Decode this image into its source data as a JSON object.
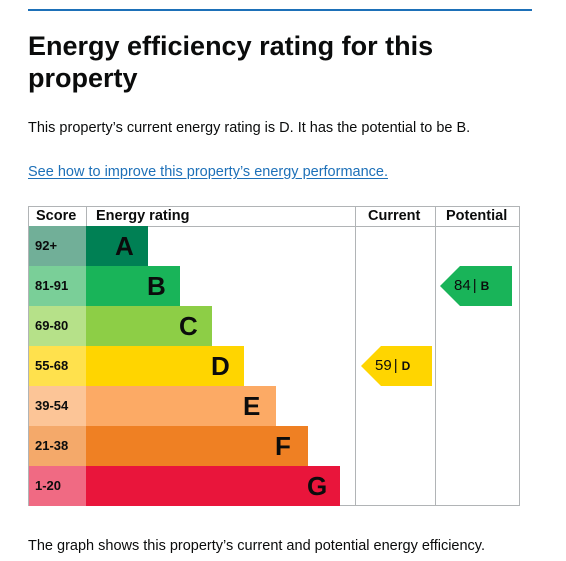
{
  "page": {
    "heading": "Energy efficiency rating for this property",
    "summary": "This property’s current energy rating is D. It has the potential to be B.",
    "improve_link": "See how to improve this property’s energy performance.",
    "caption": "The graph shows this property’s current and potential energy efficiency."
  },
  "chart": {
    "headers": {
      "score": "Score",
      "energy_rating": "Energy rating",
      "current": "Current",
      "potential": "Potential"
    },
    "bands": [
      {
        "range": "92+",
        "letter": "A",
        "color": "#008054",
        "score_bg": "#71af98"
      },
      {
        "range": "81-91",
        "letter": "B",
        "color": "#19b459",
        "score_bg": "#7acf98"
      },
      {
        "range": "69-80",
        "letter": "C",
        "color": "#8dce46",
        "score_bg": "#b6e189"
      },
      {
        "range": "55-68",
        "letter": "D",
        "color": "#ffd500",
        "score_bg": "#ffe14d"
      },
      {
        "range": "39-54",
        "letter": "E",
        "color": "#fcaa65",
        "score_bg": "#fcc597"
      },
      {
        "range": "21-38",
        "letter": "F",
        "color": "#ef8023",
        "score_bg": "#f4a96a"
      },
      {
        "range": "1-20",
        "letter": "G",
        "color": "#e9153b",
        "score_bg": "#f06a83"
      }
    ],
    "current": {
      "score": "59",
      "separator": "|",
      "band": "D",
      "color": "#ffd500"
    },
    "potential": {
      "score": "84",
      "separator": "|",
      "band": "B",
      "color": "#19b459"
    }
  }
}
